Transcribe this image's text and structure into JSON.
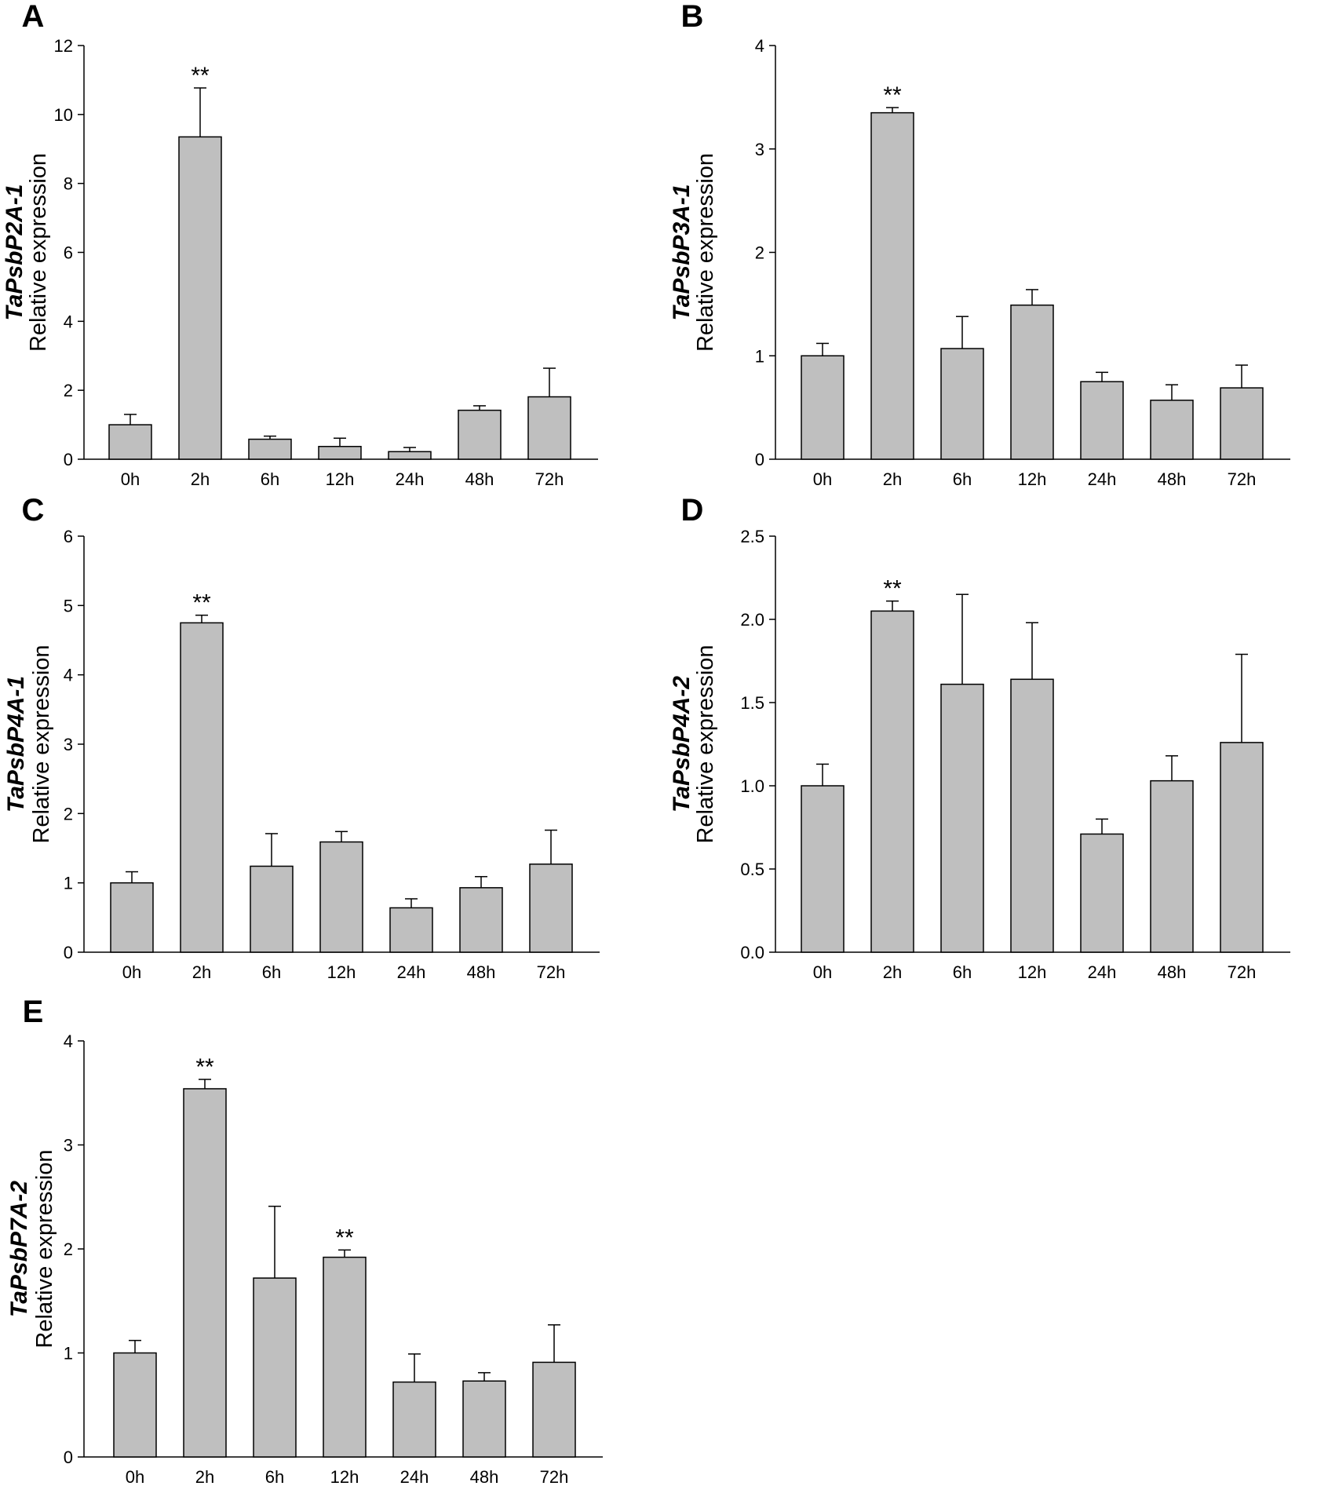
{
  "figure": {
    "colors": {
      "bar_fill": "#bfbfbf",
      "stroke": "#000000",
      "background": "#ffffff"
    }
  },
  "chart_data": [
    {
      "panel": "A",
      "type": "bar",
      "ylabel_gene": "TaPsbP2A-1",
      "ylabel": "Relative expression",
      "categories": [
        "0h",
        "2h",
        "6h",
        "12h",
        "24h",
        "48h",
        "72h"
      ],
      "values": [
        1.0,
        9.35,
        0.58,
        0.37,
        0.22,
        1.42,
        1.81
      ],
      "errors": [
        0.3,
        1.42,
        0.09,
        0.24,
        0.12,
        0.13,
        0.83
      ],
      "significance": [
        "",
        "**",
        "",
        "",
        "",
        "",
        ""
      ],
      "ylim": [
        0,
        12
      ],
      "yticks": [
        "0",
        "2",
        "4",
        "6",
        "8",
        "10",
        "12"
      ]
    },
    {
      "panel": "B",
      "type": "bar",
      "ylabel_gene": "TaPsbP3A-1",
      "ylabel": "Relative expression",
      "categories": [
        "0h",
        "2h",
        "6h",
        "12h",
        "24h",
        "48h",
        "72h"
      ],
      "values": [
        1.0,
        3.35,
        1.07,
        1.49,
        0.75,
        0.57,
        0.69
      ],
      "errors": [
        0.12,
        0.05,
        0.31,
        0.15,
        0.09,
        0.15,
        0.22
      ],
      "significance": [
        "",
        "**",
        "",
        "",
        "",
        "",
        ""
      ],
      "ylim": [
        0,
        4
      ],
      "yticks": [
        "0",
        "1",
        "2",
        "3",
        "4"
      ]
    },
    {
      "panel": "C",
      "type": "bar",
      "ylabel_gene": "TaPsbP4A-1",
      "ylabel": "Relative expression",
      "categories": [
        "0h",
        "2h",
        "6h",
        "12h",
        "24h",
        "48h",
        "72h"
      ],
      "values": [
        1.0,
        4.75,
        1.24,
        1.59,
        0.64,
        0.93,
        1.27
      ],
      "errors": [
        0.16,
        0.11,
        0.47,
        0.15,
        0.13,
        0.16,
        0.49
      ],
      "significance": [
        "",
        "**",
        "",
        "",
        "",
        "",
        ""
      ],
      "ylim": [
        0,
        6
      ],
      "yticks": [
        "0",
        "1",
        "2",
        "3",
        "4",
        "5",
        "6"
      ]
    },
    {
      "panel": "D",
      "type": "bar",
      "ylabel_gene": "TaPsbP4A-2",
      "ylabel": "Relative expression",
      "categories": [
        "0h",
        "2h",
        "6h",
        "12h",
        "24h",
        "48h",
        "72h"
      ],
      "values": [
        1.0,
        2.05,
        1.61,
        1.64,
        0.71,
        1.03,
        1.26
      ],
      "errors": [
        0.13,
        0.06,
        0.54,
        0.34,
        0.09,
        0.15,
        0.53
      ],
      "significance": [
        "",
        "**",
        "",
        "",
        "",
        "",
        ""
      ],
      "ylim": [
        0,
        2.5
      ],
      "yticks": [
        "0.0",
        "0.5",
        "1.0",
        "1.5",
        "2.0",
        "2.5"
      ]
    },
    {
      "panel": "E",
      "type": "bar",
      "ylabel_gene": "TaPsbP7A-2",
      "ylabel": "Relative expression",
      "categories": [
        "0h",
        "2h",
        "6h",
        "12h",
        "24h",
        "48h",
        "72h"
      ],
      "values": [
        1.0,
        3.54,
        1.72,
        1.92,
        0.72,
        0.73,
        0.91
      ],
      "errors": [
        0.12,
        0.09,
        0.69,
        0.07,
        0.27,
        0.08,
        0.36
      ],
      "significance": [
        "",
        "**",
        "",
        "**",
        "",
        "",
        ""
      ],
      "ylim": [
        0,
        4
      ],
      "yticks": [
        "0",
        "1",
        "2",
        "3",
        "4"
      ]
    }
  ]
}
